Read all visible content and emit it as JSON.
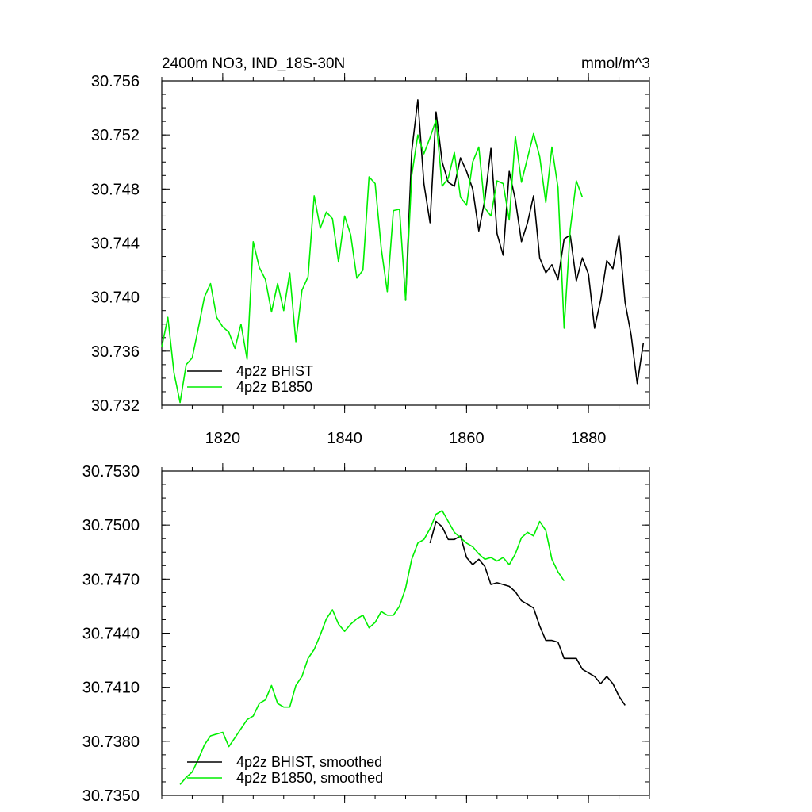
{
  "chart_data": [
    {
      "type": "line",
      "title": "2400m NO3, IND_18S-30N",
      "units": "mmol/m^3",
      "xlabel": "",
      "ylabel": "",
      "xlim": [
        1810,
        1890
      ],
      "ylim": [
        30.732,
        30.756
      ],
      "x_tick_labels": [
        "1820",
        "1840",
        "1860",
        "1880"
      ],
      "x_tick_values": [
        1820,
        1840,
        1860,
        1880
      ],
      "y_tick_labels": [
        "30.756",
        "30.752",
        "30.748",
        "30.744",
        "30.740",
        "30.736",
        "30.732"
      ],
      "y_tick_values": [
        30.756,
        30.752,
        30.748,
        30.744,
        30.74,
        30.736,
        30.732
      ],
      "grid": false,
      "legend": {
        "placement": "bottom-left"
      },
      "series": [
        {
          "name": "4p2z BHIST",
          "color": "#000000",
          "x": [
            1850,
            1851,
            1852,
            1853,
            1854,
            1855,
            1856,
            1857,
            1858,
            1859,
            1860,
            1861,
            1862,
            1863,
            1864,
            1865,
            1866,
            1867,
            1868,
            1869,
            1870,
            1871,
            1872,
            1873,
            1874,
            1875,
            1876,
            1877,
            1878,
            1879,
            1880,
            1881,
            1882,
            1883,
            1884,
            1885,
            1886,
            1887,
            1888,
            1889
          ],
          "values": [
            30.7398,
            30.7508,
            30.7546,
            30.7484,
            30.7455,
            30.7537,
            30.75,
            30.7485,
            30.7482,
            30.7503,
            30.7493,
            30.748,
            30.7449,
            30.7472,
            30.751,
            30.7447,
            30.7431,
            30.7493,
            30.7472,
            30.7441,
            30.7455,
            30.7475,
            30.7429,
            30.7418,
            30.7424,
            30.7413,
            30.7443,
            30.7446,
            30.7412,
            30.7429,
            30.7417,
            30.7377,
            30.7398,
            30.7427,
            30.7421,
            30.7446,
            30.7396,
            30.7372,
            30.7336,
            30.7366
          ]
        },
        {
          "name": "4p2z B1850",
          "color": "#00ee00",
          "x": [
            1810,
            1811,
            1812,
            1813,
            1814,
            1815,
            1816,
            1817,
            1818,
            1819,
            1820,
            1821,
            1822,
            1823,
            1824,
            1825,
            1826,
            1827,
            1828,
            1829,
            1830,
            1831,
            1832,
            1833,
            1834,
            1835,
            1836,
            1837,
            1838,
            1839,
            1840,
            1841,
            1842,
            1843,
            1844,
            1845,
            1846,
            1847,
            1848,
            1849,
            1850,
            1851,
            1852,
            1853,
            1854,
            1855,
            1856,
            1857,
            1858,
            1859,
            1860,
            1861,
            1862,
            1863,
            1864,
            1865,
            1866,
            1867,
            1868,
            1869,
            1870,
            1871,
            1872,
            1873,
            1874,
            1875,
            1876,
            1877,
            1878,
            1879
          ],
          "values": [
            30.7363,
            30.7385,
            30.7344,
            30.7322,
            30.735,
            30.7355,
            30.7377,
            30.74,
            30.741,
            30.7385,
            30.7378,
            30.7374,
            30.7362,
            30.738,
            30.7354,
            30.7441,
            30.7422,
            30.7413,
            30.7389,
            30.741,
            30.739,
            30.7418,
            30.7367,
            30.7405,
            30.7415,
            30.7475,
            30.7451,
            30.7463,
            30.7458,
            30.7426,
            30.746,
            30.7446,
            30.7414,
            30.742,
            30.7489,
            30.7484,
            30.7436,
            30.7404,
            30.7464,
            30.7465,
            30.7398,
            30.749,
            30.752,
            30.7506,
            30.7518,
            30.7531,
            30.7482,
            30.7488,
            30.7507,
            30.7474,
            30.7468,
            30.75,
            30.7511,
            30.7466,
            30.746,
            30.7486,
            30.7484,
            30.7457,
            30.7519,
            30.7485,
            30.7503,
            30.7521,
            30.7504,
            30.747,
            30.7511,
            30.7481,
            30.7377,
            30.745,
            30.7486,
            30.7474
          ]
        }
      ]
    },
    {
      "type": "line",
      "title": "",
      "xlabel": "",
      "ylabel": "",
      "xlim": [
        1810,
        1890
      ],
      "ylim": [
        30.735,
        30.753
      ],
      "x_tick_values": [
        1820,
        1840,
        1860,
        1880
      ],
      "y_tick_labels": [
        "30.7530",
        "30.7500",
        "30.7470",
        "30.7440",
        "30.7410",
        "30.7380",
        "30.7350"
      ],
      "y_tick_values": [
        30.753,
        30.75,
        30.747,
        30.744,
        30.741,
        30.738,
        30.735
      ],
      "grid": false,
      "legend": {
        "placement": "bottom-left"
      },
      "series": [
        {
          "name": "4p2z BHIST, smoothed",
          "color": "#000000",
          "x": [
            1854,
            1855,
            1856,
            1857,
            1858,
            1859,
            1860,
            1861,
            1862,
            1863,
            1864,
            1865,
            1866,
            1867,
            1868,
            1869,
            1870,
            1871,
            1872,
            1873,
            1874,
            1875,
            1876,
            1877,
            1878,
            1879,
            1880,
            1881,
            1882,
            1883,
            1884,
            1885,
            1886
          ],
          "values": [
            30.749,
            30.7502,
            30.7499,
            30.7492,
            30.7492,
            30.7494,
            30.7482,
            30.7478,
            30.7481,
            30.7477,
            30.7467,
            30.7468,
            30.7467,
            30.7466,
            30.7463,
            30.7458,
            30.7456,
            30.7454,
            30.7444,
            30.7436,
            30.7436,
            30.7435,
            30.7426,
            30.7426,
            30.7426,
            30.742,
            30.7418,
            30.7416,
            30.7412,
            30.7416,
            30.7412,
            30.7405,
            30.74
          ]
        },
        {
          "name": "4p2z B1850, smoothed",
          "color": "#00ee00",
          "x": [
            1813,
            1814,
            1815,
            1816,
            1817,
            1818,
            1819,
            1820,
            1821,
            1822,
            1823,
            1824,
            1825,
            1826,
            1827,
            1828,
            1829,
            1830,
            1831,
            1832,
            1833,
            1834,
            1835,
            1836,
            1837,
            1838,
            1839,
            1840,
            1841,
            1842,
            1843,
            1844,
            1845,
            1846,
            1847,
            1848,
            1849,
            1850,
            1851,
            1852,
            1853,
            1854,
            1855,
            1856,
            1857,
            1858,
            1859,
            1860,
            1861,
            1862,
            1863,
            1864,
            1865,
            1866,
            1867,
            1868,
            1869,
            1870,
            1871,
            1872,
            1873,
            1874,
            1875,
            1876
          ],
          "values": [
            30.7356,
            30.736,
            30.7363,
            30.737,
            30.7378,
            30.7383,
            30.7384,
            30.7385,
            30.7377,
            30.7382,
            30.7387,
            30.7392,
            30.7394,
            30.7401,
            30.7403,
            30.7411,
            30.7401,
            30.7399,
            30.7399,
            30.7411,
            30.7416,
            30.7426,
            30.7431,
            30.7439,
            30.7448,
            30.7453,
            30.7445,
            30.7441,
            30.7445,
            30.7448,
            30.745,
            30.7443,
            30.7446,
            30.7452,
            30.745,
            30.745,
            30.7455,
            30.7465,
            30.7481,
            30.749,
            30.7492,
            30.7498,
            30.7506,
            30.7508,
            30.7502,
            30.7496,
            30.7493,
            30.749,
            30.7488,
            30.7484,
            30.7481,
            30.7482,
            30.748,
            30.7482,
            30.7478,
            30.7484,
            30.7493,
            30.7496,
            30.7494,
            30.7502,
            30.7497,
            30.7481,
            30.7474,
            30.7469
          ]
        }
      ]
    }
  ]
}
